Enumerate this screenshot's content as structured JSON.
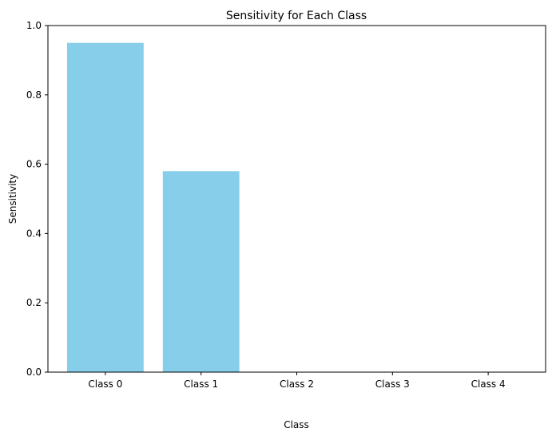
{
  "chart_data": {
    "type": "bar",
    "title": "Sensitivity for Each Class",
    "xlabel": "Class",
    "ylabel": "Sensitivity",
    "categories": [
      "Class 0",
      "Class 1",
      "Class 2",
      "Class 3",
      "Class 4"
    ],
    "values": [
      0.95,
      0.58,
      0.0,
      0.0,
      0.0
    ],
    "ylim": [
      0,
      1.0
    ],
    "yticks": [
      "0.0",
      "0.2",
      "0.4",
      "0.6",
      "0.8",
      "1.0"
    ],
    "grid": false,
    "legend": "none",
    "bar_color": "#87ceeb"
  }
}
